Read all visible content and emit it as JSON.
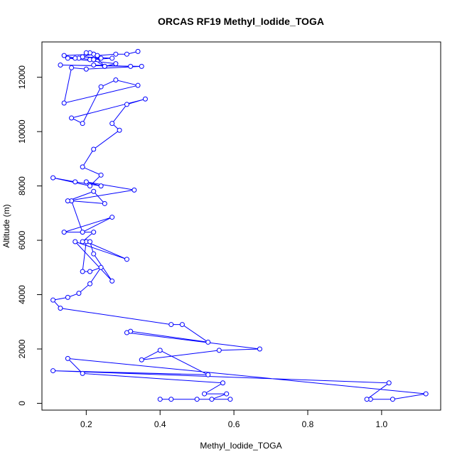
{
  "chart_data": {
    "type": "line",
    "title": "ORCAS RF19 Methyl_Iodide_TOGA",
    "xlabel": "Methyl_Iodide_TOGA",
    "ylabel": "Altitude (m)",
    "xlim": [
      0.08,
      1.16
    ],
    "ylim": [
      -250,
      13300
    ],
    "xticks": [
      0.2,
      0.4,
      0.6,
      0.8,
      1.0
    ],
    "xtick_labels": [
      "0.2",
      "0.4",
      "0.6",
      "0.8",
      "1.0"
    ],
    "yticks": [
      0,
      2000,
      4000,
      6000,
      8000,
      10000,
      12000
    ],
    "ytick_labels": [
      "0",
      "2000",
      "4000",
      "6000",
      "8000",
      "10000",
      "12000"
    ],
    "grid": false,
    "series": [
      {
        "color": "#0000ff",
        "x": [
          0.4,
          0.43,
          0.5,
          0.59,
          0.54,
          0.58,
          0.52,
          0.57,
          0.19,
          0.15,
          1.12,
          1.03,
          0.97,
          0.96,
          1.02,
          0.11,
          0.53,
          0.4,
          0.35,
          0.56,
          0.67,
          0.31,
          0.32,
          0.53,
          0.46,
          0.43,
          0.13,
          0.11,
          0.15,
          0.18,
          0.21,
          0.24,
          0.21,
          0.19,
          0.2,
          0.31,
          0.17,
          0.27,
          0.22,
          0.21,
          0.19,
          0.22,
          0.14,
          0.27,
          0.19,
          0.16,
          0.25,
          0.22,
          0.15,
          0.33,
          0.2,
          0.24,
          0.17,
          0.11,
          0.21,
          0.24,
          0.19,
          0.22,
          0.29,
          0.27,
          0.31,
          0.36,
          0.16,
          0.19,
          0.24,
          0.28,
          0.34,
          0.14,
          0.16,
          0.2,
          0.35,
          0.13,
          0.32,
          0.22,
          0.25,
          0.28,
          0.15,
          0.18,
          0.21,
          0.24,
          0.19,
          0.27,
          0.22,
          0.25,
          0.22,
          0.14,
          0.17,
          0.22,
          0.21,
          0.2,
          0.23,
          0.28,
          0.31,
          0.34
        ],
        "y": [
          150,
          150,
          150,
          150,
          150,
          350,
          350,
          750,
          1100,
          1650,
          350,
          150,
          150,
          150,
          750,
          1200,
          1050,
          1950,
          1600,
          1950,
          2000,
          2600,
          2650,
          2250,
          2900,
          2900,
          3500,
          3800,
          3900,
          4050,
          4400,
          5000,
          4850,
          4850,
          5950,
          5300,
          5950,
          4500,
          5500,
          5950,
          5950,
          6300,
          6300,
          6850,
          6300,
          7450,
          7350,
          7800,
          7450,
          7850,
          8150,
          8000,
          8150,
          8300,
          8000,
          8400,
          8700,
          9350,
          10050,
          10300,
          11000,
          11200,
          10500,
          10300,
          11650,
          11900,
          11700,
          11050,
          12350,
          12300,
          12400,
          12450,
          12400,
          12450,
          12400,
          12500,
          12700,
          12700,
          12650,
          12700,
          12750,
          12700,
          12650,
          12400,
          12850,
          12800,
          12700,
          12850,
          12900,
          12900,
          12800,
          12850,
          12850,
          12950
        ]
      }
    ]
  }
}
